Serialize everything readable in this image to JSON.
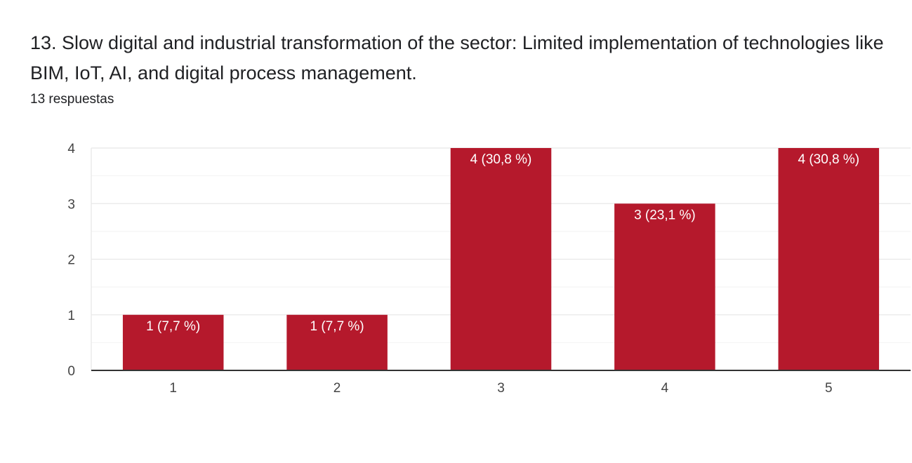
{
  "question": {
    "title": "13.  Slow digital and industrial transformation of the sector: Limited implementation of technologies like BIM, IoT, AI, and digital process management.",
    "response_count": "13 respuestas"
  },
  "colors": {
    "bar": "#b5192c",
    "grid": "#e8e8e8",
    "minor_grid": "#f2f2f2",
    "axis": "#333333",
    "tick_text": "#444444",
    "bar_label": "#ffffff"
  },
  "chart_data": {
    "type": "bar",
    "title": "",
    "xlabel": "",
    "ylabel": "",
    "categories": [
      "1",
      "2",
      "3",
      "4",
      "5"
    ],
    "values": [
      1,
      1,
      4,
      3,
      4
    ],
    "data_labels": [
      "1 (7,7 %)",
      "1 (7,7 %)",
      "4 (30,8 %)",
      "3 (23,1 %)",
      "4 (30,8 %)"
    ],
    "ylim": [
      0,
      4
    ],
    "yticks": [
      "0",
      "1",
      "2",
      "3",
      "4"
    ],
    "grid": true,
    "legend": "none"
  }
}
